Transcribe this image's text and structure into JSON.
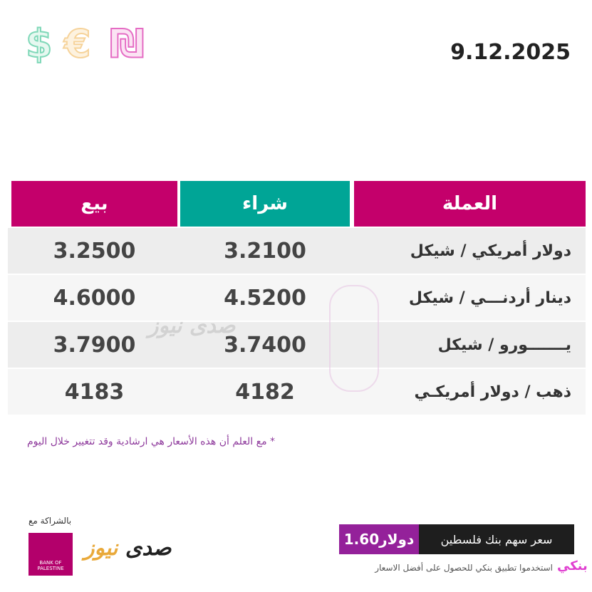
{
  "header": {
    "date": "9.12.2025",
    "icons": [
      "dollar-icon",
      "euro-icon",
      "shekel-icon"
    ],
    "icon_colors": {
      "dollar": "#7fd8b8",
      "euro": "#f6d39a",
      "shekel": "#e56cc4"
    }
  },
  "table": {
    "columns": {
      "currency": "العملة",
      "buy": "شراء",
      "sell": "بيع"
    },
    "colors": {
      "magenta": "#c4006b",
      "teal": "#00a596"
    },
    "rows": [
      {
        "currency": "دولار أمريكي / شيكل",
        "buy": "3.2100",
        "sell": "3.2500"
      },
      {
        "currency": "دينار أردنـــي / شيكل",
        "buy": "4.5200",
        "sell": "4.6000"
      },
      {
        "currency": "يـــــــورو / شيكل",
        "buy": "3.7400",
        "sell": "3.7900"
      },
      {
        "currency": "ذهب / دولار أمريكـي",
        "buy": "4182",
        "sell": "4183"
      }
    ]
  },
  "note": "* مع العلم أن هذه الأسعار هي ارشادية وقد تتغيير خلال اليوم",
  "footer": {
    "partnership": "بالشراكة مع",
    "bank_logo": "بنك فلسطين BANK OF PALESTINE",
    "news_logo": "صدى نيوز",
    "share_label": "سعر سهم بنك فلسطين",
    "share_value": "1.60دولار",
    "app_logo": "بنكي",
    "app_text": "استخدموا تطبيق بنكي للحصول على أفضل الاسعار"
  }
}
